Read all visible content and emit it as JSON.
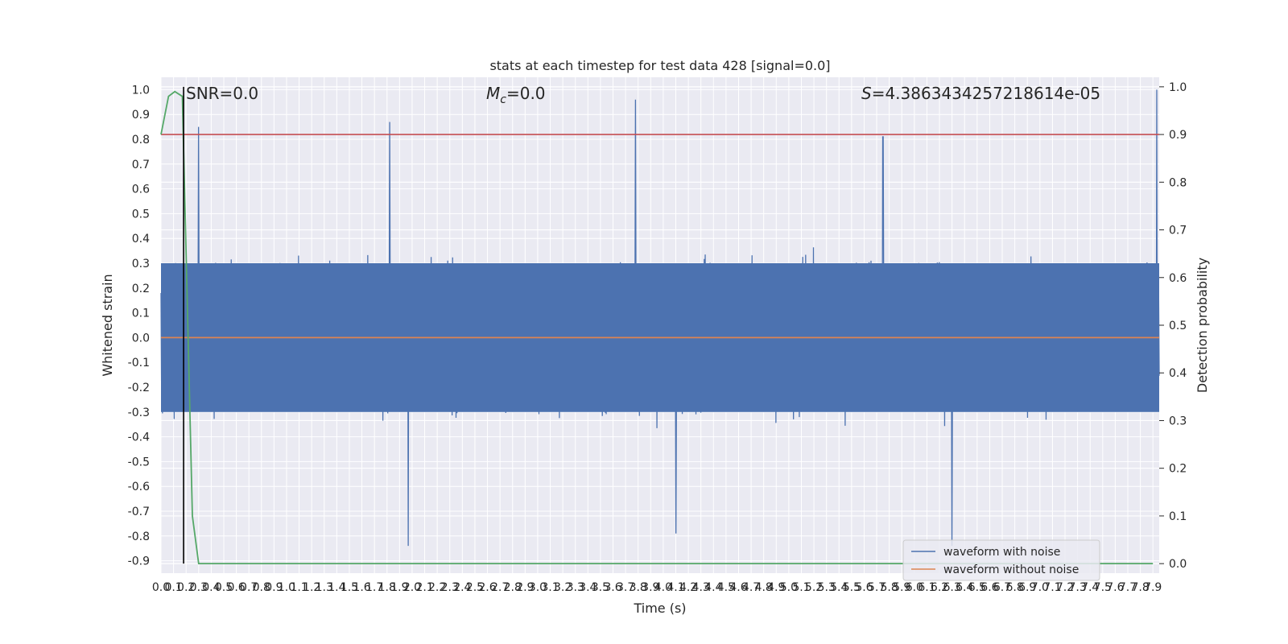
{
  "chart_data": {
    "type": "line",
    "title": "stats at each timestep for test data 428 [signal=0.0]",
    "xlabel": "Time (s)",
    "ylabel": "Whitened strain",
    "y2label": "Detection probability",
    "xlim": [
      0.0,
      7.95
    ],
    "ylim": [
      -0.95,
      1.05
    ],
    "y2lim": [
      -0.02,
      1.02
    ],
    "x_ticks": [
      0.0,
      0.1,
      0.2,
      0.3,
      0.4,
      0.5,
      0.6,
      0.7,
      0.8,
      0.9,
      1.0,
      1.1,
      1.2,
      1.3,
      1.4,
      1.5,
      1.6,
      1.7,
      1.8,
      1.9,
      2.0,
      2.1,
      2.2,
      2.3,
      2.4,
      2.5,
      2.6,
      2.7,
      2.8,
      2.9,
      3.0,
      3.1,
      3.2,
      3.3,
      3.4,
      3.5,
      3.6,
      3.7,
      3.8,
      3.9,
      4.0,
      4.1,
      4.2,
      4.3,
      4.4,
      4.5,
      4.6,
      4.7,
      4.8,
      4.9,
      5.0,
      5.1,
      5.2,
      5.3,
      5.4,
      5.5,
      5.6,
      5.7,
      5.8,
      5.9,
      6.0,
      6.1,
      6.2,
      6.3,
      6.4,
      6.5,
      6.6,
      6.7,
      6.8,
      6.9,
      7.0,
      7.1,
      7.2,
      7.3,
      7.4,
      7.5,
      7.6,
      7.7,
      7.8,
      7.9
    ],
    "y_ticks": [
      -0.9,
      -0.8,
      -0.7,
      -0.6,
      -0.5,
      -0.4,
      -0.3,
      -0.2,
      -0.1,
      0.0,
      0.1,
      0.2,
      0.3,
      0.4,
      0.5,
      0.6,
      0.7,
      0.8,
      0.9,
      1.0
    ],
    "y2_ticks": [
      0.0,
      0.1,
      0.2,
      0.3,
      0.4,
      0.5,
      0.6,
      0.7,
      0.8,
      0.9,
      1.0
    ],
    "grid": true,
    "legend_position": "bottom-right",
    "annotations": {
      "snr": "SNR=0.0",
      "mc_symbol": "M",
      "mc_sub": "c",
      "mc_value": "=0.0",
      "s_symbol": "S",
      "s_value": "=4.3863434257218614e-05"
    },
    "series": [
      {
        "name": "waveform with noise",
        "color": "#4c72b0",
        "axis": "left",
        "n_samples": 2048,
        "envelope_upper": 0.3,
        "envelope_lower": -0.3,
        "peaks": [
          {
            "x": 0.3,
            "y": 0.85
          },
          {
            "x": 1.82,
            "y": 0.87
          },
          {
            "x": 3.78,
            "y": 0.96
          },
          {
            "x": 5.75,
            "y": 0.81
          },
          {
            "x": 7.93,
            "y": 1.0
          },
          {
            "x": 1.97,
            "y": -0.84
          },
          {
            "x": 6.3,
            "y": -0.84
          },
          {
            "x": 4.1,
            "y": -0.79
          }
        ]
      },
      {
        "name": "waveform without noise",
        "color": "#dd8452",
        "axis": "left",
        "x": [
          0.0,
          7.95
        ],
        "y": [
          0.0,
          0.0
        ]
      },
      {
        "color": "#55a868",
        "axis": "right",
        "x": [
          0.0,
          0.06,
          0.11,
          0.17,
          0.25,
          0.3,
          0.38,
          7.9
        ],
        "y": [
          0.9,
          0.98,
          0.99,
          0.98,
          0.1,
          0.0,
          0.0,
          0.0
        ]
      },
      {
        "color": "#c44e52",
        "axis": "right",
        "x": [
          0.0,
          7.95
        ],
        "y": [
          0.9,
          0.9
        ]
      }
    ],
    "vlines": [
      {
        "x": 0.18,
        "color": "#000000",
        "y_from": 0.0,
        "y_to": 1.0,
        "axis": "right"
      }
    ]
  }
}
